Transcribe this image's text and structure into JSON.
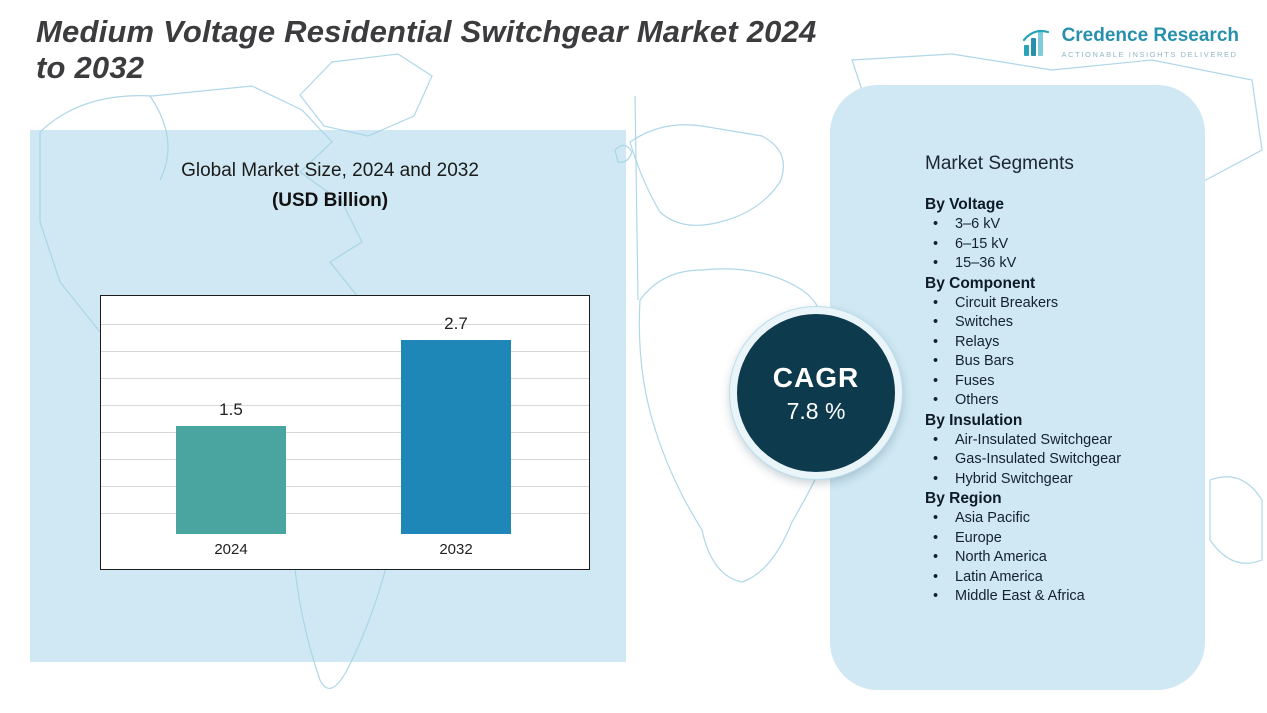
{
  "header": {
    "title_lines": [
      "Medium Voltage Residential Switchgear Market 2024",
      "to 2032"
    ],
    "brand": {
      "name": "Credence Research",
      "tagline": "Actionable Insights Delivered",
      "accent_color": "#2790ad"
    }
  },
  "chart_data": {
    "type": "bar",
    "title": "Global Market Size, 2024 and 2032",
    "subtitle": "(USD Billion)",
    "categories": [
      "2024",
      "2032"
    ],
    "values": [
      1.5,
      2.7
    ],
    "ylim": [
      0,
      3
    ],
    "grid": true,
    "bar_colors": [
      "#4aa5a0",
      "#1f87b8"
    ],
    "xlabel": "",
    "ylabel": "USD Billion"
  },
  "cagr": {
    "label": "CAGR",
    "value": "7.8 %"
  },
  "segments": {
    "title": "Market Segments",
    "groups": [
      {
        "heading": "By Voltage",
        "items": [
          "3–6 kV",
          "6–15 kV",
          "15–36 kV"
        ]
      },
      {
        "heading": "By Component",
        "items": [
          "Circuit Breakers",
          "Switches",
          "Relays",
          "Bus Bars",
          "Fuses",
          "Others"
        ]
      },
      {
        "heading": "By Insulation",
        "items": [
          "Air-Insulated Switchgear",
          "Gas-Insulated Switchgear",
          "Hybrid Switchgear"
        ]
      },
      {
        "heading": "By Region",
        "items": [
          "Asia Pacific",
          "Europe",
          "North America",
          "Latin America",
          "Middle East & Africa"
        ]
      }
    ]
  },
  "colors": {
    "panel_blue": "#cfe8f3",
    "cagr_circle": "#0e3a4e",
    "map_outline": "#a6d3e6",
    "title_gray": "#3c3c3e"
  }
}
